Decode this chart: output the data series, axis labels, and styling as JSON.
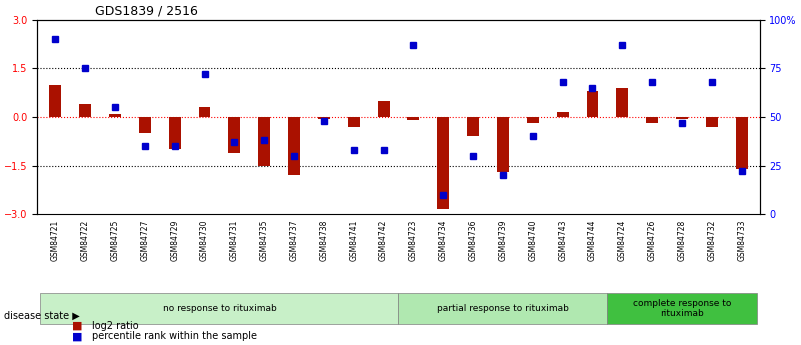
{
  "title": "GDS1839 / 2516",
  "samples": [
    "GSM84721",
    "GSM84722",
    "GSM84725",
    "GSM84727",
    "GSM84729",
    "GSM84730",
    "GSM84731",
    "GSM84735",
    "GSM84737",
    "GSM84738",
    "GSM84741",
    "GSM84742",
    "GSM84723",
    "GSM84734",
    "GSM84736",
    "GSM84739",
    "GSM84740",
    "GSM84743",
    "GSM84744",
    "GSM84724",
    "GSM84726",
    "GSM84728",
    "GSM84732",
    "GSM84733"
  ],
  "log2_ratio": [
    1.0,
    0.4,
    0.1,
    -0.5,
    -1.0,
    0.3,
    -1.1,
    -1.5,
    -1.8,
    -0.05,
    -0.3,
    0.5,
    -0.1,
    -2.85,
    -0.6,
    -1.7,
    -0.2,
    0.15,
    0.8,
    0.9,
    -0.2,
    -0.05,
    -0.3,
    -1.6
  ],
  "percentile_rank": [
    90,
    75,
    55,
    35,
    35,
    72,
    37,
    38,
    30,
    48,
    33,
    33,
    87,
    10,
    30,
    20,
    40,
    68,
    65,
    87,
    68,
    47,
    68,
    22
  ],
  "groups": [
    {
      "label": "no response to rituximab",
      "start": 0,
      "end": 12,
      "color": "#c8f0c8"
    },
    {
      "label": "partial response to rituximab",
      "start": 12,
      "end": 19,
      "color": "#b0e8b0"
    },
    {
      "label": "complete response to\nrituximab",
      "start": 19,
      "end": 24,
      "color": "#40c040"
    }
  ],
  "ylim": [
    -3,
    3
  ],
  "right_ylim": [
    0,
    100
  ],
  "yticks_left": [
    -3,
    -1.5,
    0,
    1.5,
    3
  ],
  "yticks_right": [
    0,
    25,
    50,
    75,
    100
  ],
  "hlines": [
    -1.5,
    0,
    1.5
  ],
  "bar_color": "#aa1100",
  "dot_color": "#0000cc",
  "legend_items": [
    "log2 ratio",
    "percentile rank within the sample"
  ],
  "disease_state_label": "disease state"
}
